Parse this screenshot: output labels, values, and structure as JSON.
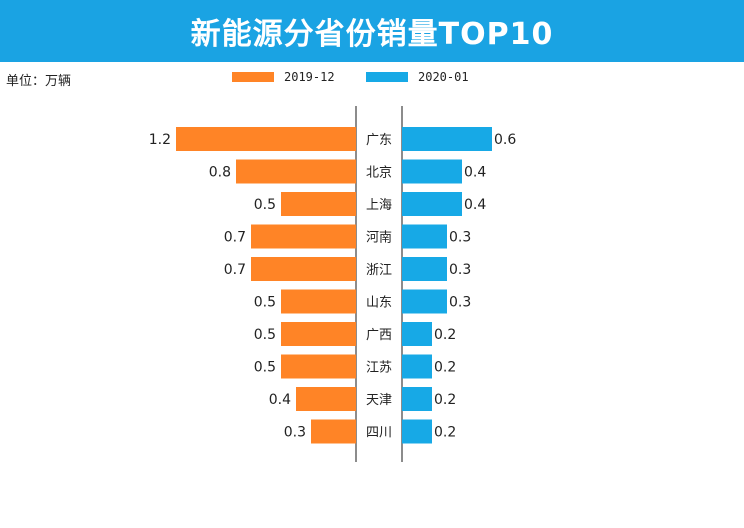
{
  "header": {
    "title": "新能源分省份销量TOP10",
    "unit": "单位：万辆"
  },
  "colors": {
    "header_bg": "#1aa3e3",
    "left": "#ff8426",
    "right": "#17a9e6",
    "axis": "#666666"
  },
  "chart_data": {
    "type": "bar",
    "layout": "butterfly",
    "title": "新能源分省份销量TOP10",
    "unit": "万辆",
    "categories": [
      "广东",
      "北京",
      "上海",
      "河南",
      "浙江",
      "山东",
      "广西",
      "江苏",
      "天津",
      "四川"
    ],
    "series": [
      {
        "name": "2019-12",
        "values": [
          1.2,
          0.8,
          0.5,
          0.7,
          0.7,
          0.5,
          0.5,
          0.5,
          0.4,
          0.3
        ],
        "labels": [
          "1.2",
          "0.8",
          "0.5",
          "0.7",
          "0.7",
          "0.5",
          "0.5",
          "0.5",
          "0.4",
          "0.3"
        ]
      },
      {
        "name": "2020-01",
        "values": [
          0.6,
          0.4,
          0.4,
          0.3,
          0.3,
          0.3,
          0.2,
          0.2,
          0.2,
          0.2
        ],
        "labels": [
          "0.6",
          "0.4",
          "0.4",
          "0.3",
          "0.3",
          "0.3",
          "0.2",
          "0.2",
          "0.2",
          "0.2"
        ]
      }
    ],
    "legend": "top-center"
  }
}
